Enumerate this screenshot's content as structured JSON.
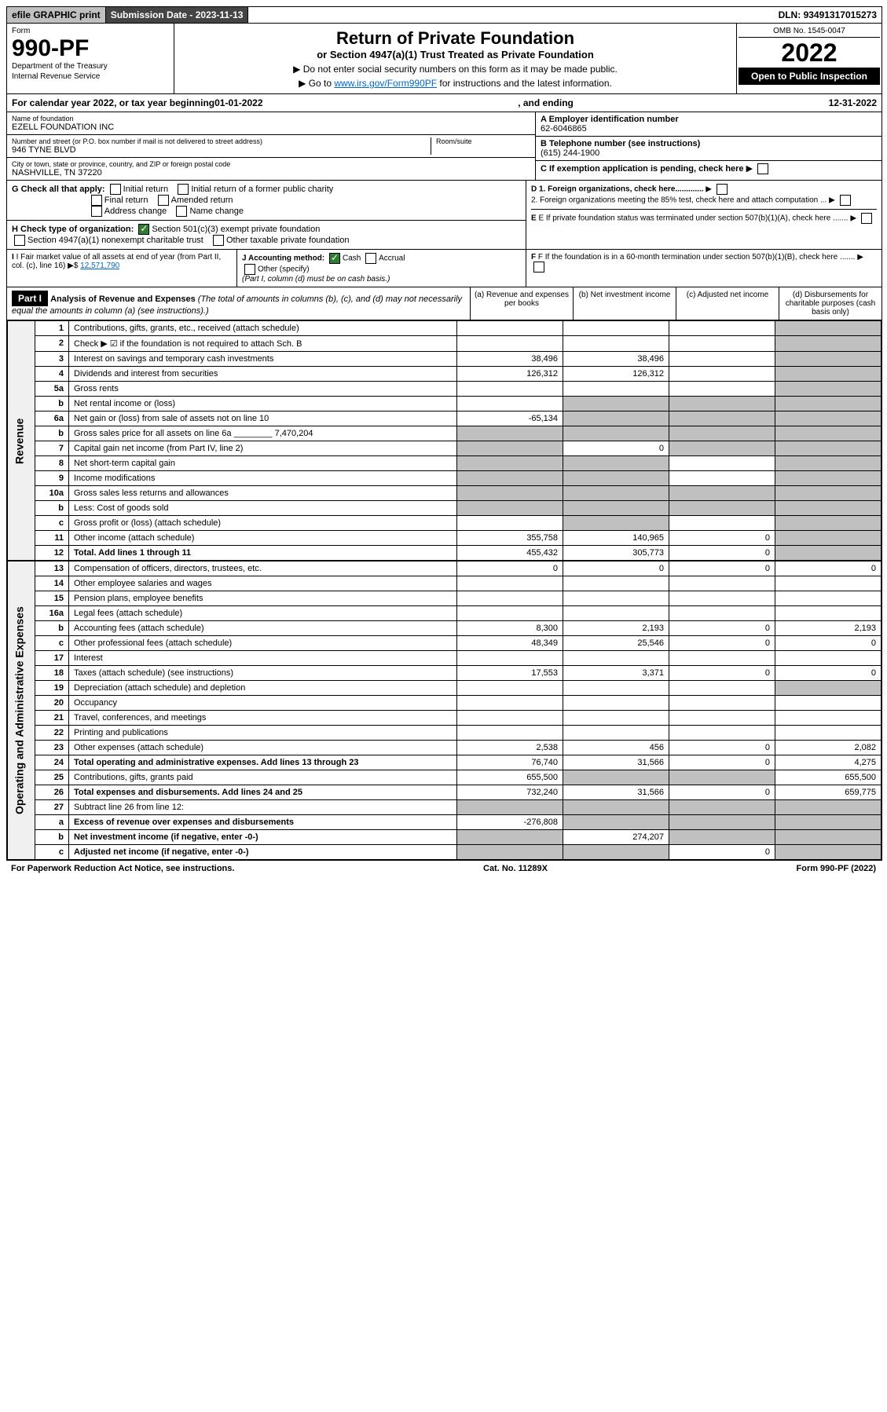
{
  "topbar": {
    "efile": "efile GRAPHIC print",
    "subdate_label": "Submission Date - ",
    "subdate": "2023-11-13",
    "dln_label": "DLN: ",
    "dln": "93491317015273"
  },
  "header": {
    "form_word": "Form",
    "form_number": "990-PF",
    "dept1": "Department of the Treasury",
    "dept2": "Internal Revenue Service",
    "title": "Return of Private Foundation",
    "subtitle": "or Section 4947(a)(1) Trust Treated as Private Foundation",
    "instr1": "▶ Do not enter social security numbers on this form as it may be made public.",
    "instr2_pre": "▶ Go to ",
    "instr2_link": "www.irs.gov/Form990PF",
    "instr2_post": " for instructions and the latest information.",
    "omb": "OMB No. 1545-0047",
    "year": "2022",
    "open": "Open to Public Inspection"
  },
  "calyear": {
    "pre": "For calendar year 2022, or tax year beginning ",
    "begin": "01-01-2022",
    "mid": ", and ending ",
    "end": "12-31-2022"
  },
  "info": {
    "name_lbl": "Name of foundation",
    "name": "EZELL FOUNDATION INC",
    "addr_lbl": "Number and street (or P.O. box number if mail is not delivered to street address)",
    "addr": "946 TYNE BLVD",
    "room_lbl": "Room/suite",
    "room": "",
    "city_lbl": "City or town, state or province, country, and ZIP or foreign postal code",
    "city": "NASHVILLE, TN  37220",
    "a_lbl": "A Employer identification number",
    "ein": "62-6046865",
    "b_lbl": "B Telephone number (see instructions)",
    "phone": "(615) 244-1900",
    "c_lbl": "C If exemption application is pending, check here",
    "d1": "D 1. Foreign organizations, check here.............",
    "d2": "2. Foreign organizations meeting the 85% test, check here and attach computation ...",
    "e_lbl": "E  If private foundation status was terminated under section 507(b)(1)(A), check here .......",
    "f_lbl": "F  If the foundation is in a 60-month termination under section 507(b)(1)(B), check here ......."
  },
  "g": {
    "label": "G Check all that apply:",
    "opts": [
      "Initial return",
      "Final return",
      "Address change",
      "Initial return of a former public charity",
      "Amended return",
      "Name change"
    ]
  },
  "h": {
    "label": "H Check type of organization:",
    "opt1": "Section 501(c)(3) exempt private foundation",
    "opt2": "Section 4947(a)(1) nonexempt charitable trust",
    "opt3": "Other taxable private foundation"
  },
  "i": {
    "label": "I Fair market value of all assets at end of year (from Part II, col. (c), line 16)",
    "value": "12,571,790"
  },
  "j": {
    "label": "J Accounting method:",
    "cash": "Cash",
    "accrual": "Accrual",
    "other": "Other (specify)",
    "note": "(Part I, column (d) must be on cash basis.)"
  },
  "part1": {
    "label": "Part I",
    "title": "Analysis of Revenue and Expenses",
    "note": "(The total of amounts in columns (b), (c), and (d) may not necessarily equal the amounts in column (a) (see instructions).)",
    "col_a": "(a) Revenue and expenses per books",
    "col_b": "(b) Net investment income",
    "col_c": "(c) Adjusted net income",
    "col_d": "(d) Disbursements for charitable purposes (cash basis only)"
  },
  "sections": {
    "revenue": "Revenue",
    "expenses": "Operating and Administrative Expenses"
  },
  "rows": [
    {
      "n": "1",
      "d": "Contributions, gifts, grants, etc., received (attach schedule)",
      "a": "",
      "b": "",
      "c": "",
      "dv": "",
      "grey_c": false,
      "grey_d": true
    },
    {
      "n": "2",
      "d": "Check ▶ ☑ if the foundation is not required to attach Sch. B",
      "a": "",
      "b": "",
      "c": "",
      "dv": "",
      "grey_d": true
    },
    {
      "n": "3",
      "d": "Interest on savings and temporary cash investments",
      "a": "38,496",
      "b": "38,496",
      "c": "",
      "dv": "",
      "grey_d": true
    },
    {
      "n": "4",
      "d": "Dividends and interest from securities",
      "a": "126,312",
      "b": "126,312",
      "c": "",
      "dv": "",
      "grey_d": true
    },
    {
      "n": "5a",
      "d": "Gross rents",
      "a": "",
      "b": "",
      "c": "",
      "dv": "",
      "grey_d": true
    },
    {
      "n": "b",
      "d": "Net rental income or (loss)",
      "a": "",
      "b": "",
      "c": "",
      "dv": "",
      "grey_a": false,
      "grey_b": true,
      "grey_c": true,
      "grey_d": true
    },
    {
      "n": "6a",
      "d": "Net gain or (loss) from sale of assets not on line 10",
      "a": "-65,134",
      "b": "",
      "c": "",
      "dv": "",
      "grey_b": true,
      "grey_c": true,
      "grey_d": true
    },
    {
      "n": "b",
      "d": "Gross sales price for all assets on line 6a ________ 7,470,204",
      "a": "",
      "b": "",
      "c": "",
      "dv": "",
      "grey_a": true,
      "grey_b": true,
      "grey_c": true,
      "grey_d": true
    },
    {
      "n": "7",
      "d": "Capital gain net income (from Part IV, line 2)",
      "a": "",
      "b": "0",
      "c": "",
      "dv": "",
      "grey_a": true,
      "grey_c": true,
      "grey_d": true
    },
    {
      "n": "8",
      "d": "Net short-term capital gain",
      "a": "",
      "b": "",
      "c": "",
      "dv": "",
      "grey_a": true,
      "grey_b": true,
      "grey_d": true
    },
    {
      "n": "9",
      "d": "Income modifications",
      "a": "",
      "b": "",
      "c": "",
      "dv": "",
      "grey_a": true,
      "grey_b": true,
      "grey_d": true
    },
    {
      "n": "10a",
      "d": "Gross sales less returns and allowances",
      "a": "",
      "b": "",
      "c": "",
      "dv": "",
      "grey_a": true,
      "grey_b": true,
      "grey_c": true,
      "grey_d": true
    },
    {
      "n": "b",
      "d": "Less: Cost of goods sold",
      "a": "",
      "b": "",
      "c": "",
      "dv": "",
      "grey_a": true,
      "grey_b": true,
      "grey_c": true,
      "grey_d": true
    },
    {
      "n": "c",
      "d": "Gross profit or (loss) (attach schedule)",
      "a": "",
      "b": "",
      "c": "",
      "dv": "",
      "grey_b": true,
      "grey_d": true
    },
    {
      "n": "11",
      "d": "Other income (attach schedule)",
      "a": "355,758",
      "b": "140,965",
      "c": "0",
      "dv": "",
      "grey_d": true
    },
    {
      "n": "12",
      "d": "Total. Add lines 1 through 11",
      "a": "455,432",
      "b": "305,773",
      "c": "0",
      "dv": "",
      "bold": true,
      "grey_d": true
    }
  ],
  "exp_rows": [
    {
      "n": "13",
      "d": "Compensation of officers, directors, trustees, etc.",
      "a": "0",
      "b": "0",
      "c": "0",
      "dv": "0"
    },
    {
      "n": "14",
      "d": "Other employee salaries and wages",
      "a": "",
      "b": "",
      "c": "",
      "dv": ""
    },
    {
      "n": "15",
      "d": "Pension plans, employee benefits",
      "a": "",
      "b": "",
      "c": "",
      "dv": ""
    },
    {
      "n": "16a",
      "d": "Legal fees (attach schedule)",
      "a": "",
      "b": "",
      "c": "",
      "dv": ""
    },
    {
      "n": "b",
      "d": "Accounting fees (attach schedule)",
      "a": "8,300",
      "b": "2,193",
      "c": "0",
      "dv": "2,193"
    },
    {
      "n": "c",
      "d": "Other professional fees (attach schedule)",
      "a": "48,349",
      "b": "25,546",
      "c": "0",
      "dv": "0"
    },
    {
      "n": "17",
      "d": "Interest",
      "a": "",
      "b": "",
      "c": "",
      "dv": ""
    },
    {
      "n": "18",
      "d": "Taxes (attach schedule) (see instructions)",
      "a": "17,553",
      "b": "3,371",
      "c": "0",
      "dv": "0"
    },
    {
      "n": "19",
      "d": "Depreciation (attach schedule) and depletion",
      "a": "",
      "b": "",
      "c": "",
      "dv": "",
      "grey_d": true
    },
    {
      "n": "20",
      "d": "Occupancy",
      "a": "",
      "b": "",
      "c": "",
      "dv": ""
    },
    {
      "n": "21",
      "d": "Travel, conferences, and meetings",
      "a": "",
      "b": "",
      "c": "",
      "dv": ""
    },
    {
      "n": "22",
      "d": "Printing and publications",
      "a": "",
      "b": "",
      "c": "",
      "dv": ""
    },
    {
      "n": "23",
      "d": "Other expenses (attach schedule)",
      "a": "2,538",
      "b": "456",
      "c": "0",
      "dv": "2,082"
    },
    {
      "n": "24",
      "d": "Total operating and administrative expenses. Add lines 13 through 23",
      "a": "76,740",
      "b": "31,566",
      "c": "0",
      "dv": "4,275",
      "bold": true
    },
    {
      "n": "25",
      "d": "Contributions, gifts, grants paid",
      "a": "655,500",
      "b": "",
      "c": "",
      "dv": "655,500",
      "grey_b": true,
      "grey_c": true
    },
    {
      "n": "26",
      "d": "Total expenses and disbursements. Add lines 24 and 25",
      "a": "732,240",
      "b": "31,566",
      "c": "0",
      "dv": "659,775",
      "bold": true
    },
    {
      "n": "27",
      "d": "Subtract line 26 from line 12:",
      "a": "",
      "b": "",
      "c": "",
      "dv": "",
      "grey_a": true,
      "grey_b": true,
      "grey_c": true,
      "grey_d": true
    },
    {
      "n": "a",
      "d": "Excess of revenue over expenses and disbursements",
      "a": "-276,808",
      "b": "",
      "c": "",
      "dv": "",
      "bold": true,
      "grey_b": true,
      "grey_c": true,
      "grey_d": true
    },
    {
      "n": "b",
      "d": "Net investment income (if negative, enter -0-)",
      "a": "",
      "b": "274,207",
      "c": "",
      "dv": "",
      "bold": true,
      "grey_a": true,
      "grey_c": true,
      "grey_d": true
    },
    {
      "n": "c",
      "d": "Adjusted net income (if negative, enter -0-)",
      "a": "",
      "b": "",
      "c": "0",
      "dv": "",
      "bold": true,
      "grey_a": true,
      "grey_b": true,
      "grey_d": true
    }
  ],
  "footer": {
    "left": "For Paperwork Reduction Act Notice, see instructions.",
    "mid": "Cat. No. 11289X",
    "right": "Form 990-PF (2022)"
  }
}
